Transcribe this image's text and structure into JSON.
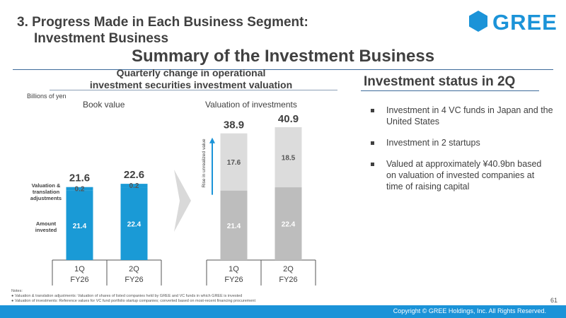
{
  "header": {
    "section_title_line1": "3. Progress Made in Each Business Segment:",
    "section_title_line2": "Investment Business",
    "logo_text": "GREE",
    "main_heading": "Summary of the Investment Business"
  },
  "left_panel": {
    "heading_line1": "Quarterly change in operational",
    "heading_line2": "investment securities investment valuation",
    "units": "Billions of yen",
    "book_value_title": "Book value",
    "valuation_title": "Valuation of investments",
    "label_valuation_adjustments": [
      "Valuation &",
      "translation",
      "adjustments"
    ],
    "label_amount_invested": [
      "Amount",
      "invested"
    ],
    "rise_label": "Rise in unrealized value"
  },
  "chart_data": [
    {
      "type": "bar",
      "title": "Book value",
      "categories": [
        "1Q FY26",
        "2Q FY26"
      ],
      "series": [
        {
          "name": "Amount invested",
          "values": [
            21.4,
            22.4
          ]
        },
        {
          "name": "Valuation & translation adjustments",
          "values": [
            0.2,
            0.2
          ]
        }
      ],
      "totals": [
        21.6,
        22.6
      ],
      "ylim": [
        0,
        42
      ],
      "colors": {
        "invested": "#1a9ad6",
        "adjust": "#1a9ad6"
      }
    },
    {
      "type": "bar",
      "title": "Valuation of investments",
      "categories": [
        "1Q FY26",
        "2Q FY26"
      ],
      "series": [
        {
          "name": "Amount invested",
          "values": [
            21.4,
            22.4
          ]
        },
        {
          "name": "Rise in unrealized value",
          "values": [
            17.6,
            18.5
          ]
        }
      ],
      "totals": [
        38.9,
        40.9
      ],
      "ylim": [
        0,
        42
      ],
      "colors": {
        "invested": "#bdbdbd",
        "rise": "#dcdcdc"
      }
    }
  ],
  "axis_labels": {
    "quarters": [
      "1Q",
      "2Q"
    ],
    "fiscal_years": [
      "FY26",
      "FY26"
    ]
  },
  "right_panel": {
    "heading": "Investment status in 2Q",
    "bullets": [
      "Investment in 4 VC funds in Japan and the United States",
      "Investment in 2 startups",
      "Valued at approximately ¥40.9bn based on valuation of invested companies at time of raising capital"
    ]
  },
  "notes": {
    "title": "Notes:",
    "items": [
      "Valuation & translation adjustments: Valuation of shares of listed companies held by GREE and VC funds in which GREE is invested",
      "Valuation of investments: Reference values for VC fund portfolio startup companies; converted based on most-recent financing procurement"
    ]
  },
  "footer": {
    "page_number": "61",
    "copyright": "Copyright © GREE Holdings, Inc. All Rights Reserved."
  },
  "colors": {
    "brand_blue": "#1b93d8",
    "title_gray": "#404040",
    "rule_blue": "#3d6b9a"
  }
}
